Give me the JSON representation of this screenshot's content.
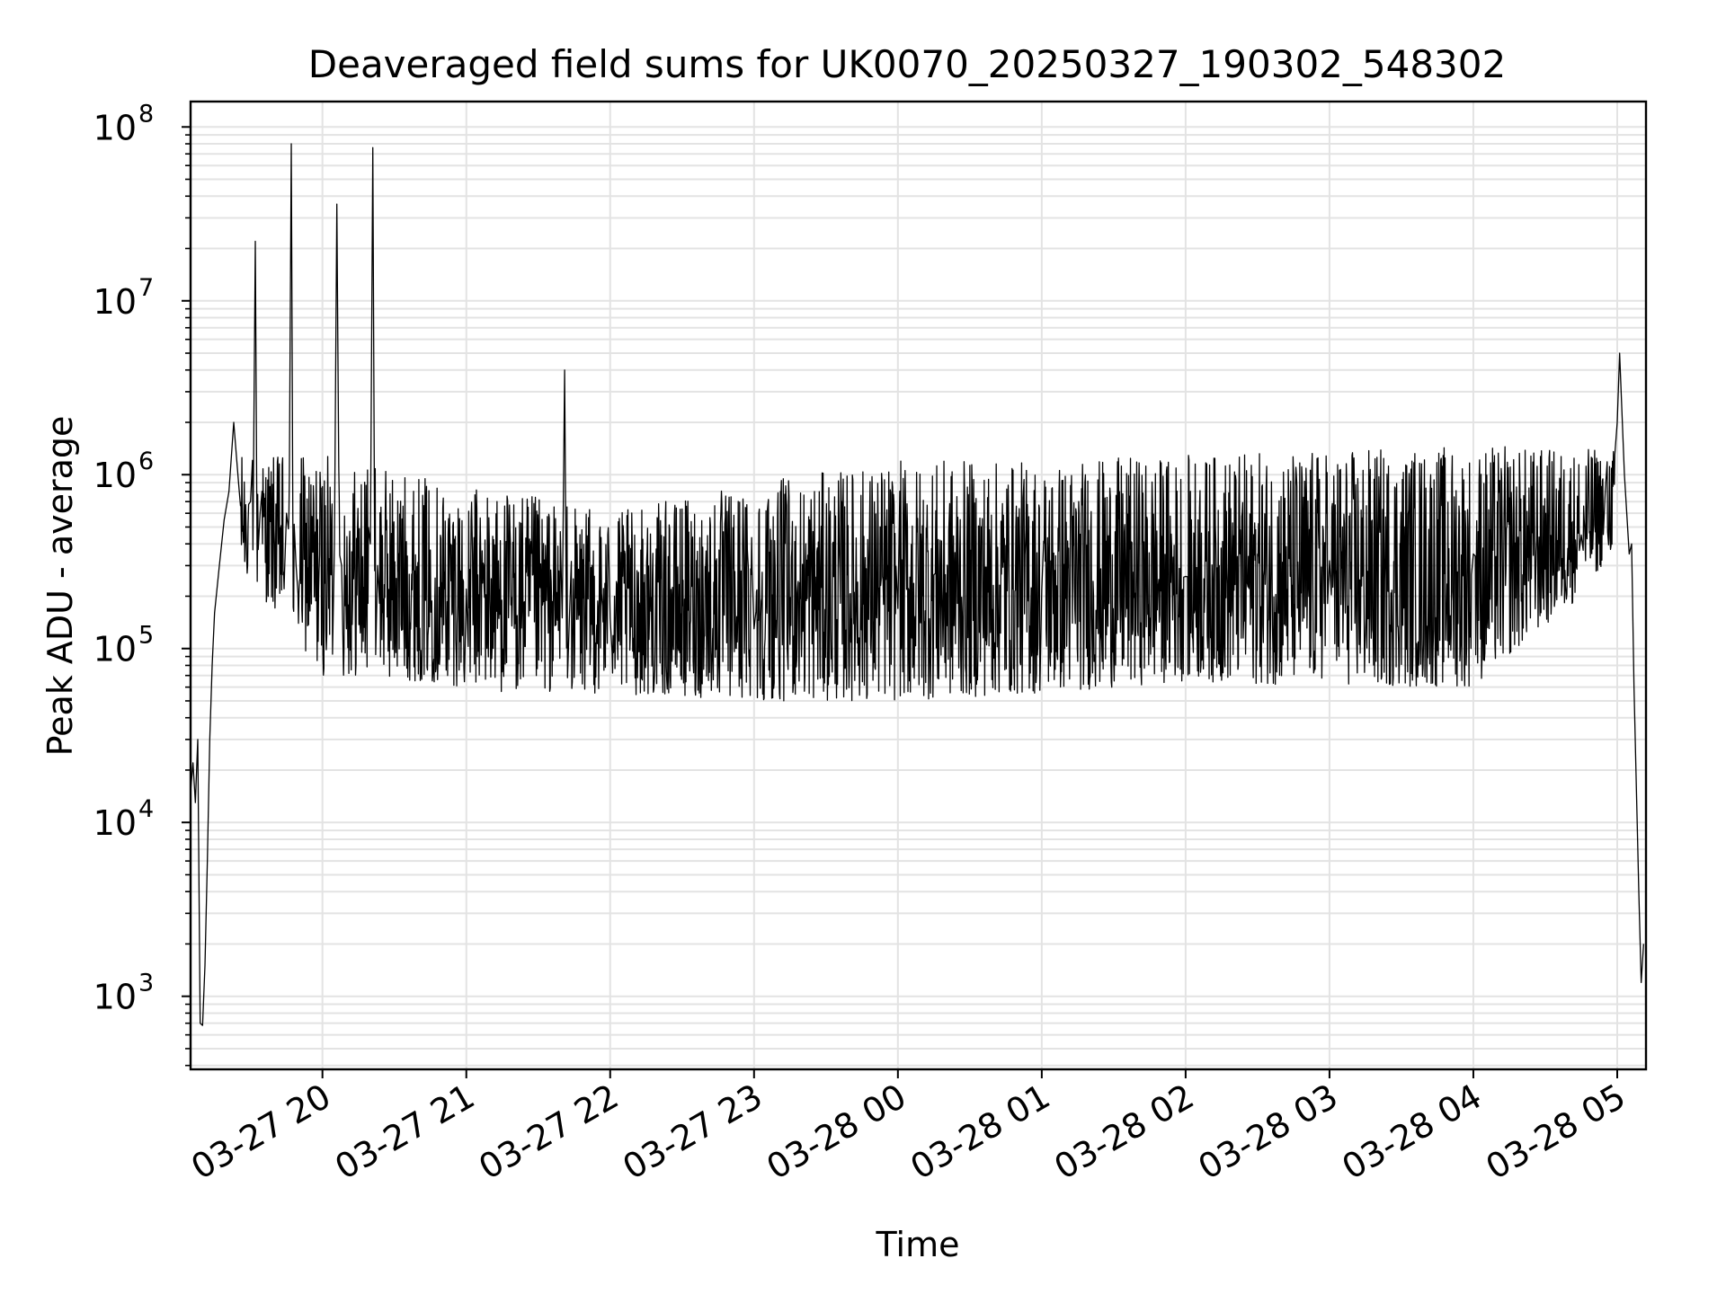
{
  "chart_data": {
    "type": "line",
    "title": "Deaveraged field sums for UK0070_20250327_190302_548302",
    "xlabel": "Time",
    "ylabel": "Peak ADU - average",
    "y_scale": "log",
    "ylim": [
      380,
      140000000
    ],
    "xlim": [
      "2025-03-27 19:05",
      "2025-03-28 05:12"
    ],
    "grid": true,
    "line_color": "#000000",
    "grid_color": "#e3e3e3",
    "x_ticks": [
      {
        "t": "2025-03-27 20:00",
        "label": "03-27 20"
      },
      {
        "t": "2025-03-27 21:00",
        "label": "03-27 21"
      },
      {
        "t": "2025-03-27 22:00",
        "label": "03-27 22"
      },
      {
        "t": "2025-03-27 23:00",
        "label": "03-27 23"
      },
      {
        "t": "2025-03-28 00:00",
        "label": "03-28 00"
      },
      {
        "t": "2025-03-28 01:00",
        "label": "03-28 01"
      },
      {
        "t": "2025-03-28 02:00",
        "label": "03-28 02"
      },
      {
        "t": "2025-03-28 03:00",
        "label": "03-28 03"
      },
      {
        "t": "2025-03-28 04:00",
        "label": "03-28 04"
      },
      {
        "t": "2025-03-28 05:00",
        "label": "03-28 05"
      }
    ],
    "y_ticks": [
      {
        "value": 1000,
        "base": "10",
        "exp": "3"
      },
      {
        "value": 10000,
        "base": "10",
        "exp": "4"
      },
      {
        "value": 100000,
        "base": "10",
        "exp": "5"
      },
      {
        "value": 1000000,
        "base": "10",
        "exp": "6"
      },
      {
        "value": 10000000,
        "base": "10",
        "exp": "7"
      },
      {
        "value": 100000000,
        "base": "10",
        "exp": "8"
      }
    ],
    "series": [
      {
        "points": [
          [
            "2025-03-27 19:05",
            15000
          ],
          [
            "2025-03-27 19:06",
            22000
          ],
          [
            "2025-03-27 19:07",
            13000
          ],
          [
            "2025-03-27 19:08",
            30000
          ],
          [
            "2025-03-27 19:09",
            700
          ],
          [
            "2025-03-27 19:10",
            680
          ],
          [
            "2025-03-27 19:11",
            1500
          ],
          [
            "2025-03-27 19:12",
            6000
          ],
          [
            "2025-03-27 19:13",
            30000
          ],
          [
            "2025-03-27 19:14",
            80000
          ],
          [
            "2025-03-27 19:15",
            160000
          ],
          [
            "2025-03-27 19:17",
            300000
          ],
          [
            "2025-03-27 19:19",
            550000
          ],
          [
            "2025-03-27 19:21",
            800000
          ],
          [
            "2025-03-27 19:23",
            2000000
          ],
          [
            "2025-03-27 19:25",
            900000
          ],
          [
            "2025-03-27 19:30",
            700000
          ],
          [
            "2025-03-27 19:32",
            22000000
          ],
          [
            "2025-03-27 19:34",
            600000
          ],
          [
            "2025-03-27 19:45",
            600000
          ],
          [
            "2025-03-27 19:47",
            80000000
          ],
          [
            "2025-03-27 19:49",
            300000
          ],
          [
            "2025-03-27 20:05",
            400000
          ],
          [
            "2025-03-27 20:06",
            36000000
          ],
          [
            "2025-03-27 20:08",
            300000
          ],
          [
            "2025-03-27 20:20",
            400000
          ],
          [
            "2025-03-27 20:21",
            76000000
          ],
          [
            "2025-03-27 20:23",
            300000
          ],
          [
            "2025-03-27 21:00",
            220000
          ],
          [
            "2025-03-27 21:40",
            150000
          ],
          [
            "2025-03-27 21:41",
            4000000
          ],
          [
            "2025-03-27 21:43",
            150000
          ],
          [
            "2025-03-27 22:00",
            150000
          ],
          [
            "2025-03-27 23:00",
            130000
          ],
          [
            "2025-03-28 00:00",
            170000
          ],
          [
            "2025-03-28 01:00",
            220000
          ],
          [
            "2025-03-28 02:00",
            260000
          ],
          [
            "2025-03-28 03:00",
            320000
          ],
          [
            "2025-03-28 04:00",
            350000
          ],
          [
            "2025-03-28 04:45",
            450000
          ],
          [
            "2025-03-28 04:55",
            800000
          ],
          [
            "2025-03-28 05:00",
            2000000
          ],
          [
            "2025-03-28 05:01",
            5000000
          ],
          [
            "2025-03-28 05:03",
            1000000
          ],
          [
            "2025-03-28 05:05",
            350000
          ],
          [
            "2025-03-28 05:06",
            400000
          ],
          [
            "2025-03-28 05:07",
            60000
          ],
          [
            "2025-03-28 05:09",
            4000
          ],
          [
            "2025-03-28 05:10",
            1200
          ],
          [
            "2025-03-28 05:11",
            2000
          ]
        ],
        "noise": [
          [
            "2025-03-27 19:25",
            300000,
            1300000
          ],
          [
            "2025-03-27 20:00",
            70000,
            1300000
          ],
          [
            "2025-03-27 20:40",
            65000,
            1000000
          ],
          [
            "2025-03-27 21:20",
            55000,
            800000
          ],
          [
            "2025-03-27 22:00",
            55000,
            600000
          ],
          [
            "2025-03-27 23:00",
            50000,
            900000
          ],
          [
            "2025-03-28 00:00",
            50000,
            1200000
          ],
          [
            "2025-03-28 01:00",
            55000,
            1200000
          ],
          [
            "2025-03-28 02:00",
            65000,
            1300000
          ],
          [
            "2025-03-28 03:00",
            60000,
            1400000
          ],
          [
            "2025-03-28 04:00",
            60000,
            1500000
          ],
          [
            "2025-03-28 04:45",
            200000,
            1400000
          ],
          [
            "2025-03-28 05:00",
            400000,
            1500000
          ]
        ]
      }
    ]
  }
}
